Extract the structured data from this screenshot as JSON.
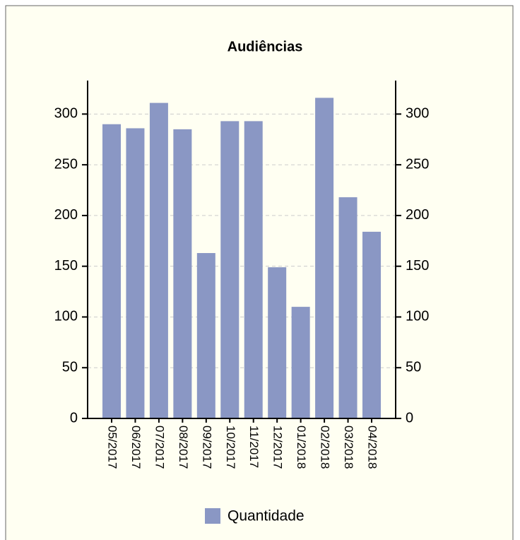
{
  "chart_data": {
    "type": "bar",
    "title": "Audiências",
    "categories": [
      "05/2017",
      "06/2017",
      "07/2017",
      "08/2017",
      "09/2017",
      "10/2017",
      "11/2017",
      "12/2017",
      "01/2018",
      "02/2018",
      "03/2018",
      "04/2018"
    ],
    "series": [
      {
        "name": "Quantidade",
        "color": "#8a97c4",
        "values": [
          290,
          286,
          311,
          285,
          163,
          293,
          293,
          149,
          110,
          316,
          218,
          184
        ]
      }
    ],
    "ylim": [
      0,
      333
    ],
    "yticks": [
      0,
      50,
      100,
      150,
      200,
      250,
      300
    ],
    "y2lim": [
      0,
      333
    ],
    "y2ticks": [
      0,
      50,
      100,
      150,
      200,
      250,
      300
    ],
    "grid": true,
    "legend": "bottom"
  }
}
